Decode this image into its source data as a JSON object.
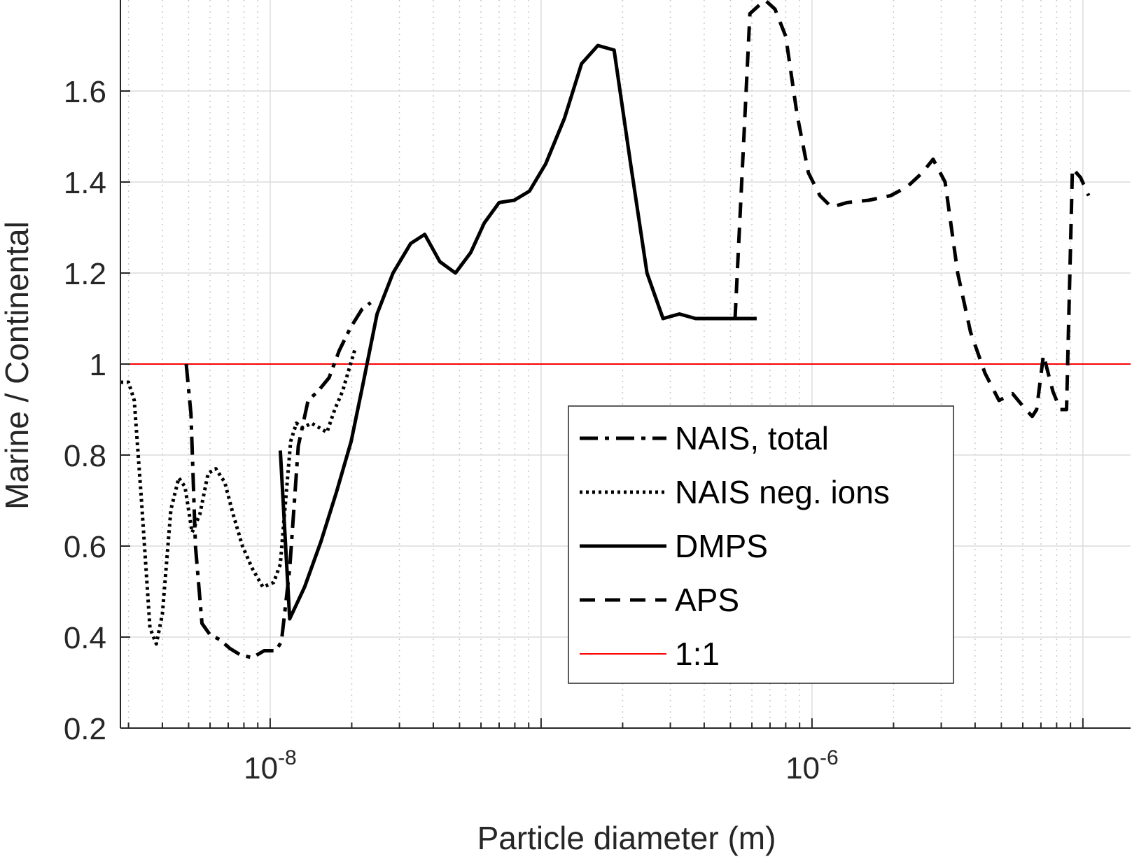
{
  "chart_data": {
    "type": "line",
    "xlabel": "Particle diameter (m)",
    "ylabel": "Marine / Continental",
    "xscale": "log",
    "xlim": [
      2.8e-09,
      1.5e-05
    ],
    "ylim": [
      0.2,
      1.8
    ],
    "yticks": [
      0.2,
      0.4,
      0.6,
      0.8,
      1.0,
      1.2,
      1.4,
      1.6
    ],
    "ytick_labels": [
      "0.2",
      "0.4",
      "0.6",
      "0.8",
      "1",
      "1.2",
      "1.4",
      "1.6"
    ],
    "xticks": [
      1e-08,
      1e-06
    ],
    "xtick_labels": [
      {
        "base": "10",
        "exp": "-8"
      },
      {
        "base": "10",
        "exp": "-6"
      }
    ],
    "grid": true,
    "legend_position": "lower-center-right",
    "series": [
      {
        "name": "NAIS, total",
        "style": "dashdot",
        "color": "#000000",
        "x": [
          4.9e-09,
          5.1e-09,
          5.3e-09,
          5.6e-09,
          6e-09,
          6.5e-09,
          7.1e-09,
          7.8e-09,
          8.6e-09,
          9.5e-09,
          1.05e-08,
          1.1e-08,
          1.18e-08,
          1.27e-08,
          1.38e-08,
          1.5e-08,
          1.65e-08,
          1.8e-08,
          1.98e-08,
          2.18e-08,
          2.35e-08
        ],
        "y": [
          1.0,
          0.89,
          0.6,
          0.43,
          0.405,
          0.395,
          0.375,
          0.36,
          0.355,
          0.37,
          0.37,
          0.39,
          0.55,
          0.82,
          0.92,
          0.94,
          0.97,
          1.03,
          1.08,
          1.12,
          1.135
        ]
      },
      {
        "name": "NAIS neg. ions",
        "style": "dotted",
        "color": "#000000",
        "x": [
          2.8e-09,
          3e-09,
          3.15e-09,
          3.35e-09,
          3.6e-09,
          3.8e-09,
          4e-09,
          4.3e-09,
          4.6e-09,
          4.85e-09,
          5.15e-09,
          5.5e-09,
          5.9e-09,
          6.3e-09,
          6.8e-09,
          7.3e-09,
          7.9e-09,
          8.6e-09,
          9.4e-09,
          1.03e-08,
          1.09e-08,
          1.14e-08,
          1.19e-08,
          1.25e-08,
          1.32e-08,
          1.42e-08,
          1.52e-08,
          1.62e-08,
          1.73e-08,
          1.85e-08,
          1.98e-08,
          2.05e-08
        ],
        "y": [
          0.96,
          0.96,
          0.92,
          0.7,
          0.42,
          0.385,
          0.45,
          0.68,
          0.75,
          0.73,
          0.63,
          0.67,
          0.76,
          0.77,
          0.74,
          0.67,
          0.6,
          0.55,
          0.51,
          0.52,
          0.56,
          0.7,
          0.83,
          0.87,
          0.86,
          0.87,
          0.86,
          0.85,
          0.9,
          0.94,
          1.0,
          1.03
        ]
      },
      {
        "name": "DMPS",
        "style": "solid",
        "color": "#000000",
        "x": [
          1.09e-08,
          1.18e-08,
          1.34e-08,
          1.54e-08,
          1.76e-08,
          1.99e-08,
          2.19e-08,
          2.48e-08,
          2.84e-08,
          3.3e-08,
          3.72e-08,
          4.23e-08,
          4.83e-08,
          5.5e-08,
          6.17e-08,
          7e-08,
          7.96e-08,
          9.06e-08,
          1.04e-07,
          1.22e-07,
          1.41e-07,
          1.62e-07,
          1.86e-07,
          2.14e-07,
          2.46e-07,
          2.82e-07,
          3.24e-07,
          3.72e-07,
          4.26e-07,
          4.96e-07,
          5.5e-07,
          6.25e-07
        ],
        "y": [
          0.81,
          0.44,
          0.51,
          0.61,
          0.72,
          0.83,
          0.95,
          1.11,
          1.2,
          1.265,
          1.285,
          1.225,
          1.2,
          1.245,
          1.31,
          1.355,
          1.36,
          1.38,
          1.44,
          1.54,
          1.66,
          1.7,
          1.69,
          1.44,
          1.2,
          1.1,
          1.11,
          1.1,
          1.1,
          1.1,
          1.1,
          1.1
        ]
      },
      {
        "name": "APS",
        "style": "dashed",
        "color": "#000000",
        "x": [
          5.2e-07,
          5.9e-07,
          6.7e-07,
          7.3e-07,
          8e-07,
          8.8e-07,
          9.7e-07,
          1.07e-06,
          1.18e-06,
          1.35e-06,
          1.62e-06,
          1.95e-06,
          2.25e-06,
          2.55e-06,
          2.8e-06,
          3.1e-06,
          3.45e-06,
          3.85e-06,
          4.35e-06,
          4.9e-06,
          5.5e-06,
          6.15e-06,
          6.5e-06,
          6.75e-06,
          7.15e-06,
          7.75e-06,
          8.25e-06,
          8.7e-06,
          9.15e-06,
          9.8e-06,
          1.05e-05
        ],
        "y": [
          1.1,
          1.77,
          1.8,
          1.78,
          1.72,
          1.55,
          1.42,
          1.37,
          1.345,
          1.355,
          1.36,
          1.37,
          1.39,
          1.42,
          1.45,
          1.4,
          1.2,
          1.07,
          0.98,
          0.92,
          0.935,
          0.9,
          0.885,
          0.9,
          1.02,
          0.94,
          0.9,
          0.9,
          1.43,
          1.41,
          1.37
        ]
      },
      {
        "name": "1:1",
        "style": "solid-thin",
        "color": "#ff0000",
        "x": [
          2.8e-09,
          1.5e-05
        ],
        "y": [
          1.0,
          1.0
        ]
      }
    ]
  }
}
